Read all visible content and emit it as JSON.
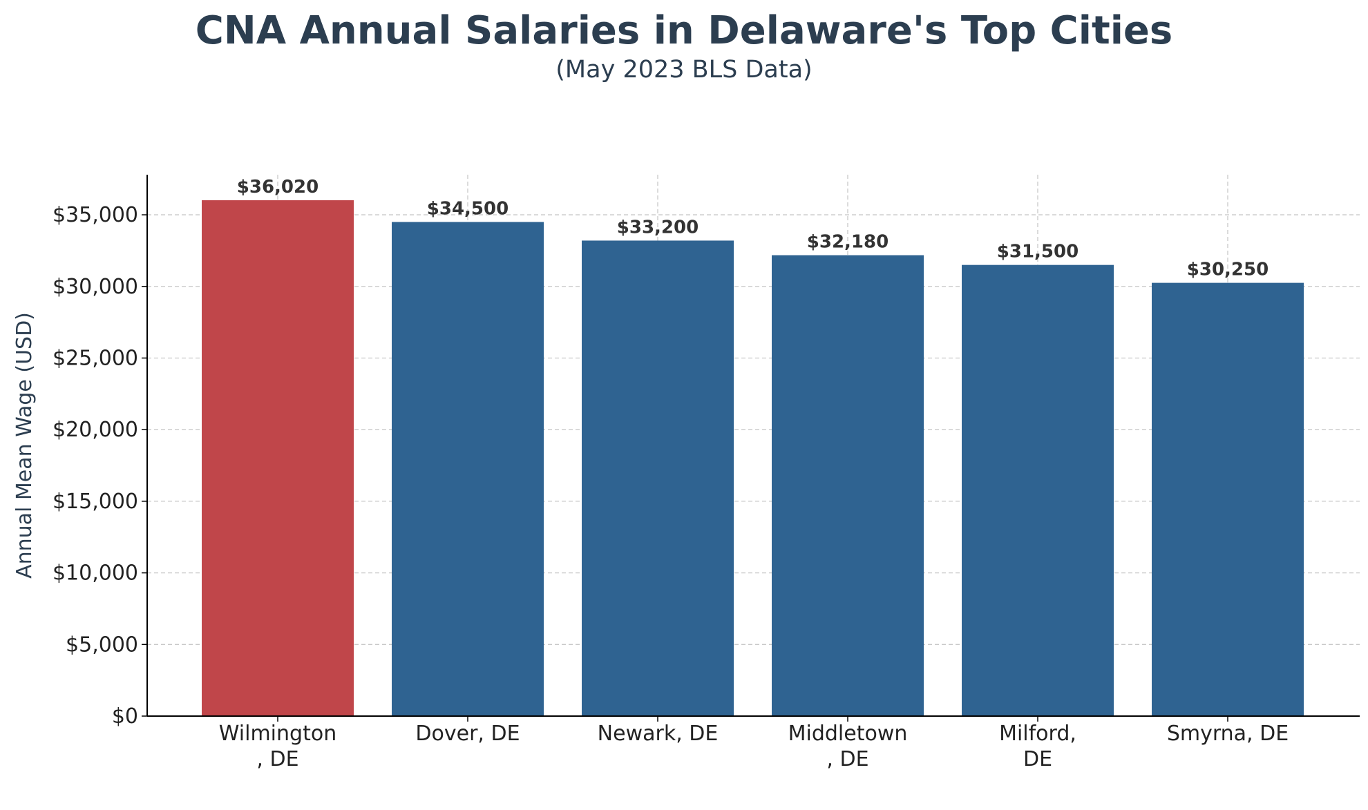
{
  "chart_data": {
    "type": "bar",
    "title": "CNA Annual Salaries in Delaware's Top Cities",
    "subtitle": "(May 2023 BLS Data)",
    "xlabel": "",
    "ylabel": "Annual Mean Wage (USD)",
    "categories": [
      [
        "Wilmington",
        ", DE"
      ],
      [
        "Dover, DE"
      ],
      [
        "Newark, DE"
      ],
      [
        "Middletown",
        ", DE"
      ],
      [
        "Milford,",
        "DE"
      ],
      [
        "Smyrna, DE"
      ]
    ],
    "values": [
      36020,
      34500,
      33200,
      32180,
      31500,
      30250
    ],
    "value_labels": [
      "$36,020",
      "$34,500",
      "$33,200",
      "$32,180",
      "$31,500",
      "$30,250"
    ],
    "ylim": [
      0,
      37800
    ],
    "yticks": [
      0,
      5000,
      10000,
      15000,
      20000,
      25000,
      30000,
      35000
    ],
    "ytick_labels": [
      "$0",
      "$5,000",
      "$10,000",
      "$15,000",
      "$20,000",
      "$25,000",
      "$30,000",
      "$35,000"
    ],
    "bar_colors": [
      "#c0464a",
      "#2f6391",
      "#2f6391",
      "#2f6391",
      "#2f6391",
      "#2f6391"
    ],
    "highlight_color": "#c0464a",
    "bar_color": "#2f6391",
    "grid": true,
    "legend": false
  }
}
